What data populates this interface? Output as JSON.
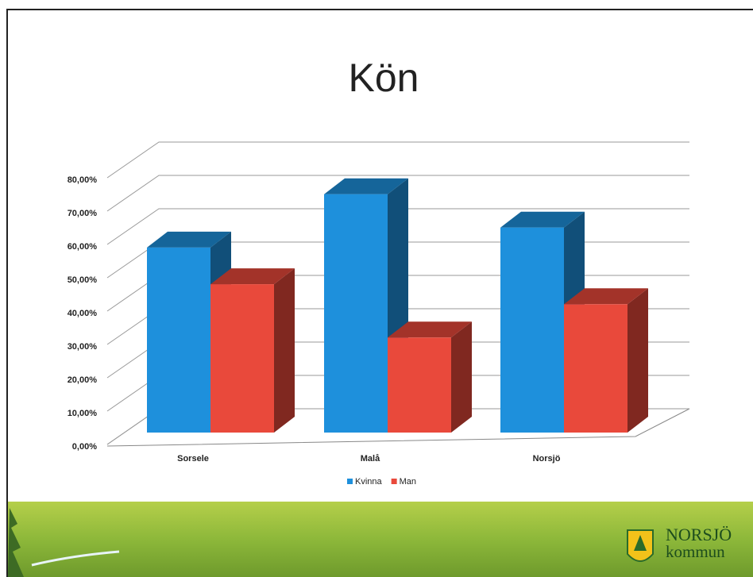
{
  "chart_data": {
    "type": "bar3d",
    "title": "Kön",
    "categories": [
      "Sorsele",
      "Malå",
      "Norsjö"
    ],
    "series": [
      {
        "name": "Kvinna",
        "color": "#1e90dc",
        "values": [
          55.5,
          71.5,
          61.5
        ]
      },
      {
        "name": "Man",
        "color": "#e9493b",
        "values": [
          44.5,
          28.5,
          38.5
        ]
      }
    ],
    "ylim": [
      0,
      80
    ],
    "yticks": [
      {
        "value": 0,
        "label": "0,00%"
      },
      {
        "value": 10,
        "label": "10,00%"
      },
      {
        "value": 20,
        "label": "20,00%"
      },
      {
        "value": 30,
        "label": "30,00%"
      },
      {
        "value": 40,
        "label": "40,00%"
      },
      {
        "value": 50,
        "label": "50,00%"
      },
      {
        "value": 60,
        "label": "60,00%"
      },
      {
        "value": 70,
        "label": "70,00%"
      },
      {
        "value": 80,
        "label": "80,00%"
      }
    ],
    "grid": true,
    "legend": "bottom"
  },
  "footer": {
    "logo_line1": "NORSJÖ",
    "logo_line2": "kommun"
  }
}
